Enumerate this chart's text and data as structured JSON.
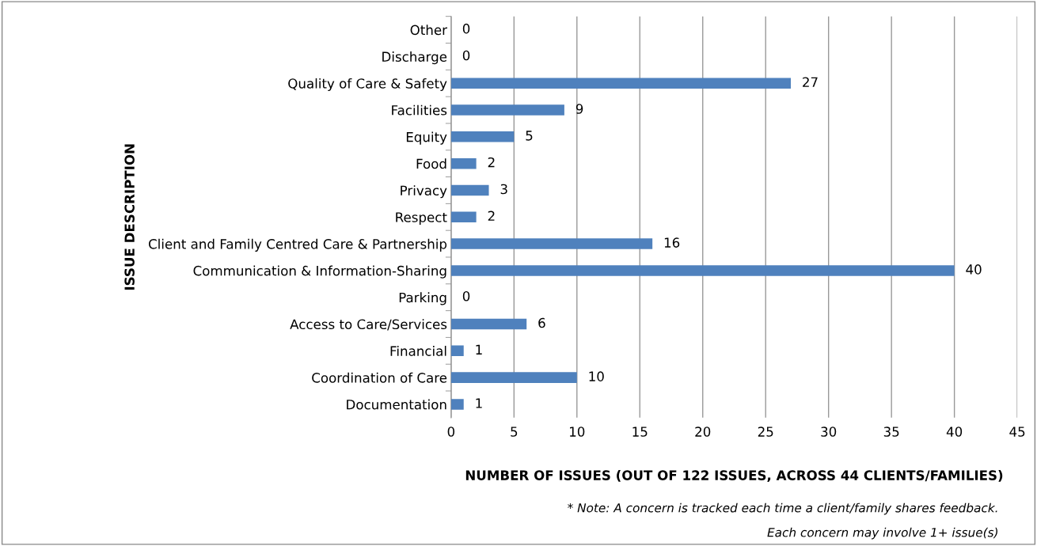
{
  "chart_data": {
    "type": "bar",
    "orientation": "horizontal",
    "categories": [
      "Other",
      "Discharge",
      "Quality of Care & Safety",
      "Facilities",
      "Equity",
      "Food",
      "Privacy",
      "Respect",
      "Client and Family Centred Care & Partnership",
      "Communication & Information-Sharing",
      "Parking",
      "Access to Care/Services",
      "Financial",
      "Coordination of Care",
      "Documentation"
    ],
    "values": [
      0,
      0,
      27,
      9,
      5,
      2,
      3,
      2,
      16,
      40,
      0,
      6,
      1,
      10,
      1
    ],
    "color": "#4f81bd",
    "xlim": [
      0,
      45
    ],
    "xticks": [
      0,
      5,
      10,
      15,
      20,
      25,
      30,
      35,
      40,
      45
    ],
    "grid": "x",
    "data_labels": true,
    "legend": false,
    "xlabel": "NUMBER OF ISSUES (OUT OF 122 ISSUES, ACROSS 44 CLIENTS/FAMILIES)",
    "ylabel": "ISSUE DESCRIPTION",
    "annotations": [
      "* Note: A concern is tracked each time a client/family shares feedback.",
      "Each concern may involve 1+ issue(s)"
    ]
  }
}
